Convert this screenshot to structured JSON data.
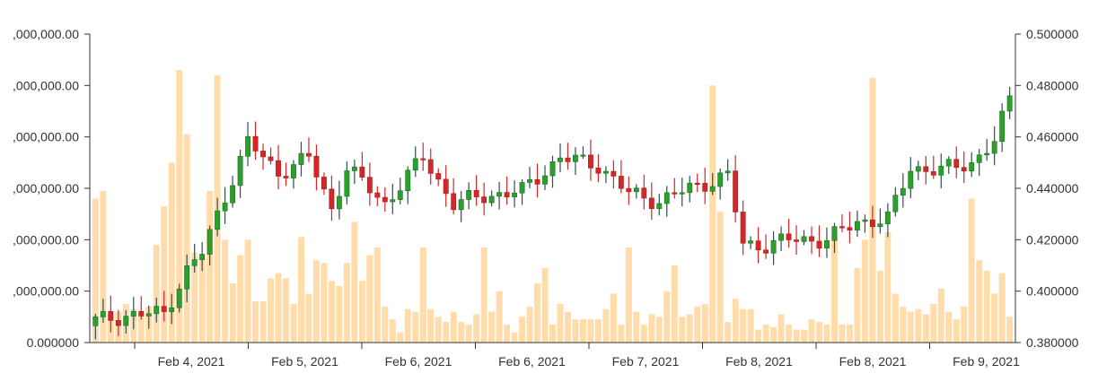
{
  "chart_data": {
    "type": "candlestick-volume",
    "x_tick_labels": [
      "Feb 4, 2021",
      "Feb 5, 2021",
      "Feb 6, 2021",
      "Feb 6, 2021",
      "Feb 7, 2021",
      "Feb 8, 2021",
      "Feb 8, 2021",
      "Feb 9, 2021"
    ],
    "left_axis": {
      "label": "",
      "ticks": [
        "0.000000",
        ",000,000.00",
        ",000,000.00",
        ",000,000.00",
        ",000,000.00",
        ",000,000.00",
        ",000,000.00"
      ],
      "range": [
        0,
        6
      ]
    },
    "right_axis": {
      "label": "",
      "ticks": [
        "0.380000",
        "0.400000",
        "0.420000",
        "0.440000",
        "0.460000",
        "0.480000",
        "0.500000"
      ],
      "range": [
        0.38,
        0.5
      ]
    },
    "grid": false,
    "colors": {
      "up": "#2ca02c",
      "down": "#d62728",
      "volume": "#ffdcaa",
      "wick_up": "#2f4f4f",
      "wick_down": "#d62728",
      "axis": "#333333"
    },
    "volume": [
      2.8,
      2.95,
      0.55,
      0.6,
      0.75,
      0.65,
      0.55,
      0.7,
      1.9,
      2.65,
      3.5,
      5.3,
      4.05,
      1.75,
      1.65,
      2.95,
      5.2,
      2.0,
      1.15,
      1.7,
      2.0,
      0.8,
      0.8,
      1.25,
      1.35,
      1.25,
      0.75,
      2.05,
      0.95,
      1.6,
      1.55,
      1.2,
      1.1,
      1.55,
      2.35,
      1.2,
      1.7,
      1.85,
      0.7,
      0.45,
      0.2,
      0.65,
      0.6,
      1.85,
      0.65,
      0.5,
      0.4,
      0.6,
      0.4,
      0.35,
      0.55,
      1.85,
      0.6,
      1.0,
      0.35,
      0.2,
      0.5,
      0.7,
      1.15,
      1.45,
      0.35,
      0.75,
      0.6,
      0.45,
      0.45,
      0.45,
      0.45,
      0.65,
      0.95,
      0.35,
      1.85,
      0.6,
      0.35,
      0.55,
      0.5,
      1.0,
      1.5,
      0.5,
      0.55,
      0.7,
      0.75,
      5.0,
      2.55,
      0.4,
      0.85,
      0.65,
      0.65,
      0.25,
      0.35,
      0.3,
      0.55,
      0.35,
      0.25,
      0.25,
      0.45,
      0.4,
      0.35,
      2.1,
      0.35,
      0.35,
      1.45,
      2.0,
      5.15,
      1.4,
      2.15,
      0.95,
      0.7,
      0.6,
      0.65,
      0.55,
      0.75,
      1.05,
      0.6,
      0.45,
      0.7,
      2.8,
      1.6,
      1.4,
      0.95,
      1.35,
      0.5
    ]
  }
}
